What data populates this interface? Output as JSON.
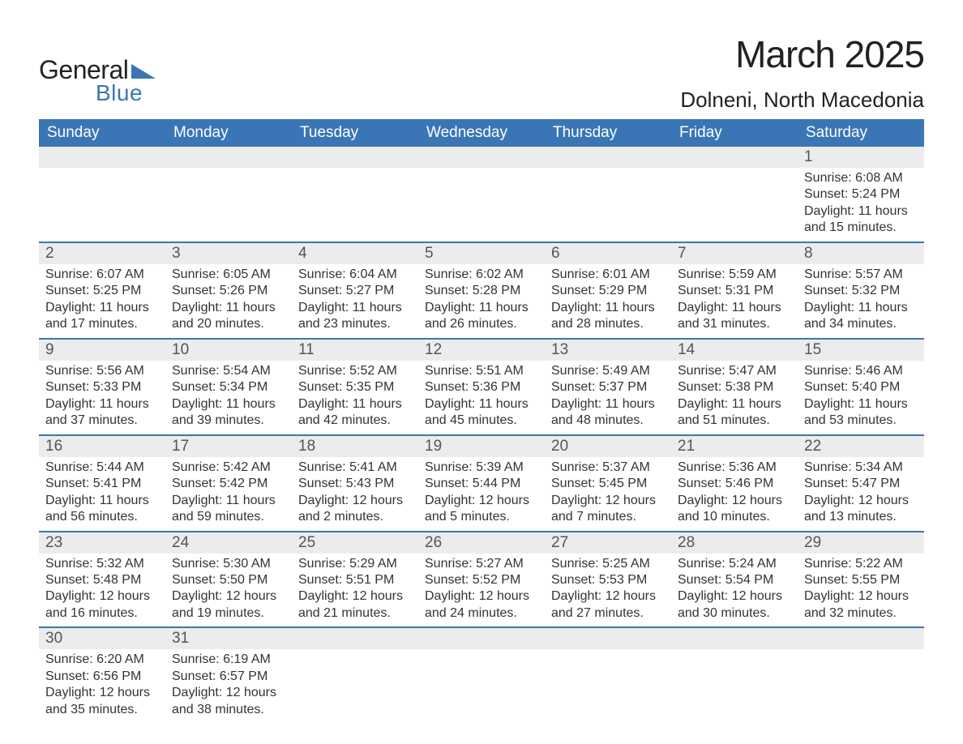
{
  "brand": {
    "word1": "General",
    "word2": "Blue",
    "accent_color": "#3a76b5"
  },
  "title": {
    "month": "March 2025",
    "location": "Dolneni, North Macedonia"
  },
  "calendar": {
    "header_bg": "#3a76b5",
    "header_fg": "#ffffff",
    "row_divider_color": "#3a76b5",
    "daynum_bg": "#ececec",
    "text_color": "#333333",
    "fontsize_header": 19,
    "fontsize_daynum": 19,
    "fontsize_data": 16,
    "columns": [
      "Sunday",
      "Monday",
      "Tuesday",
      "Wednesday",
      "Thursday",
      "Friday",
      "Saturday"
    ],
    "weeks": [
      [
        null,
        null,
        null,
        null,
        null,
        null,
        {
          "n": "1",
          "sunrise": "6:08 AM",
          "sunset": "5:24 PM",
          "daylight_l1": "11 hours",
          "daylight_l2": "and 15 minutes."
        }
      ],
      [
        {
          "n": "2",
          "sunrise": "6:07 AM",
          "sunset": "5:25 PM",
          "daylight_l1": "11 hours",
          "daylight_l2": "and 17 minutes."
        },
        {
          "n": "3",
          "sunrise": "6:05 AM",
          "sunset": "5:26 PM",
          "daylight_l1": "11 hours",
          "daylight_l2": "and 20 minutes."
        },
        {
          "n": "4",
          "sunrise": "6:04 AM",
          "sunset": "5:27 PM",
          "daylight_l1": "11 hours",
          "daylight_l2": "and 23 minutes."
        },
        {
          "n": "5",
          "sunrise": "6:02 AM",
          "sunset": "5:28 PM",
          "daylight_l1": "11 hours",
          "daylight_l2": "and 26 minutes."
        },
        {
          "n": "6",
          "sunrise": "6:01 AM",
          "sunset": "5:29 PM",
          "daylight_l1": "11 hours",
          "daylight_l2": "and 28 minutes."
        },
        {
          "n": "7",
          "sunrise": "5:59 AM",
          "sunset": "5:31 PM",
          "daylight_l1": "11 hours",
          "daylight_l2": "and 31 minutes."
        },
        {
          "n": "8",
          "sunrise": "5:57 AM",
          "sunset": "5:32 PM",
          "daylight_l1": "11 hours",
          "daylight_l2": "and 34 minutes."
        }
      ],
      [
        {
          "n": "9",
          "sunrise": "5:56 AM",
          "sunset": "5:33 PM",
          "daylight_l1": "11 hours",
          "daylight_l2": "and 37 minutes."
        },
        {
          "n": "10",
          "sunrise": "5:54 AM",
          "sunset": "5:34 PM",
          "daylight_l1": "11 hours",
          "daylight_l2": "and 39 minutes."
        },
        {
          "n": "11",
          "sunrise": "5:52 AM",
          "sunset": "5:35 PM",
          "daylight_l1": "11 hours",
          "daylight_l2": "and 42 minutes."
        },
        {
          "n": "12",
          "sunrise": "5:51 AM",
          "sunset": "5:36 PM",
          "daylight_l1": "11 hours",
          "daylight_l2": "and 45 minutes."
        },
        {
          "n": "13",
          "sunrise": "5:49 AM",
          "sunset": "5:37 PM",
          "daylight_l1": "11 hours",
          "daylight_l2": "and 48 minutes."
        },
        {
          "n": "14",
          "sunrise": "5:47 AM",
          "sunset": "5:38 PM",
          "daylight_l1": "11 hours",
          "daylight_l2": "and 51 minutes."
        },
        {
          "n": "15",
          "sunrise": "5:46 AM",
          "sunset": "5:40 PM",
          "daylight_l1": "11 hours",
          "daylight_l2": "and 53 minutes."
        }
      ],
      [
        {
          "n": "16",
          "sunrise": "5:44 AM",
          "sunset": "5:41 PM",
          "daylight_l1": "11 hours",
          "daylight_l2": "and 56 minutes."
        },
        {
          "n": "17",
          "sunrise": "5:42 AM",
          "sunset": "5:42 PM",
          "daylight_l1": "11 hours",
          "daylight_l2": "and 59 minutes."
        },
        {
          "n": "18",
          "sunrise": "5:41 AM",
          "sunset": "5:43 PM",
          "daylight_l1": "12 hours",
          "daylight_l2": "and 2 minutes."
        },
        {
          "n": "19",
          "sunrise": "5:39 AM",
          "sunset": "5:44 PM",
          "daylight_l1": "12 hours",
          "daylight_l2": "and 5 minutes."
        },
        {
          "n": "20",
          "sunrise": "5:37 AM",
          "sunset": "5:45 PM",
          "daylight_l1": "12 hours",
          "daylight_l2": "and 7 minutes."
        },
        {
          "n": "21",
          "sunrise": "5:36 AM",
          "sunset": "5:46 PM",
          "daylight_l1": "12 hours",
          "daylight_l2": "and 10 minutes."
        },
        {
          "n": "22",
          "sunrise": "5:34 AM",
          "sunset": "5:47 PM",
          "daylight_l1": "12 hours",
          "daylight_l2": "and 13 minutes."
        }
      ],
      [
        {
          "n": "23",
          "sunrise": "5:32 AM",
          "sunset": "5:48 PM",
          "daylight_l1": "12 hours",
          "daylight_l2": "and 16 minutes."
        },
        {
          "n": "24",
          "sunrise": "5:30 AM",
          "sunset": "5:50 PM",
          "daylight_l1": "12 hours",
          "daylight_l2": "and 19 minutes."
        },
        {
          "n": "25",
          "sunrise": "5:29 AM",
          "sunset": "5:51 PM",
          "daylight_l1": "12 hours",
          "daylight_l2": "and 21 minutes."
        },
        {
          "n": "26",
          "sunrise": "5:27 AM",
          "sunset": "5:52 PM",
          "daylight_l1": "12 hours",
          "daylight_l2": "and 24 minutes."
        },
        {
          "n": "27",
          "sunrise": "5:25 AM",
          "sunset": "5:53 PM",
          "daylight_l1": "12 hours",
          "daylight_l2": "and 27 minutes."
        },
        {
          "n": "28",
          "sunrise": "5:24 AM",
          "sunset": "5:54 PM",
          "daylight_l1": "12 hours",
          "daylight_l2": "and 30 minutes."
        },
        {
          "n": "29",
          "sunrise": "5:22 AM",
          "sunset": "5:55 PM",
          "daylight_l1": "12 hours",
          "daylight_l2": "and 32 minutes."
        }
      ],
      [
        {
          "n": "30",
          "sunrise": "6:20 AM",
          "sunset": "6:56 PM",
          "daylight_l1": "12 hours",
          "daylight_l2": "and 35 minutes."
        },
        {
          "n": "31",
          "sunrise": "6:19 AM",
          "sunset": "6:57 PM",
          "daylight_l1": "12 hours",
          "daylight_l2": "and 38 minutes."
        },
        null,
        null,
        null,
        null,
        null
      ]
    ],
    "labels": {
      "sunrise": "Sunrise:",
      "sunset": "Sunset:",
      "daylight": "Daylight:"
    }
  }
}
